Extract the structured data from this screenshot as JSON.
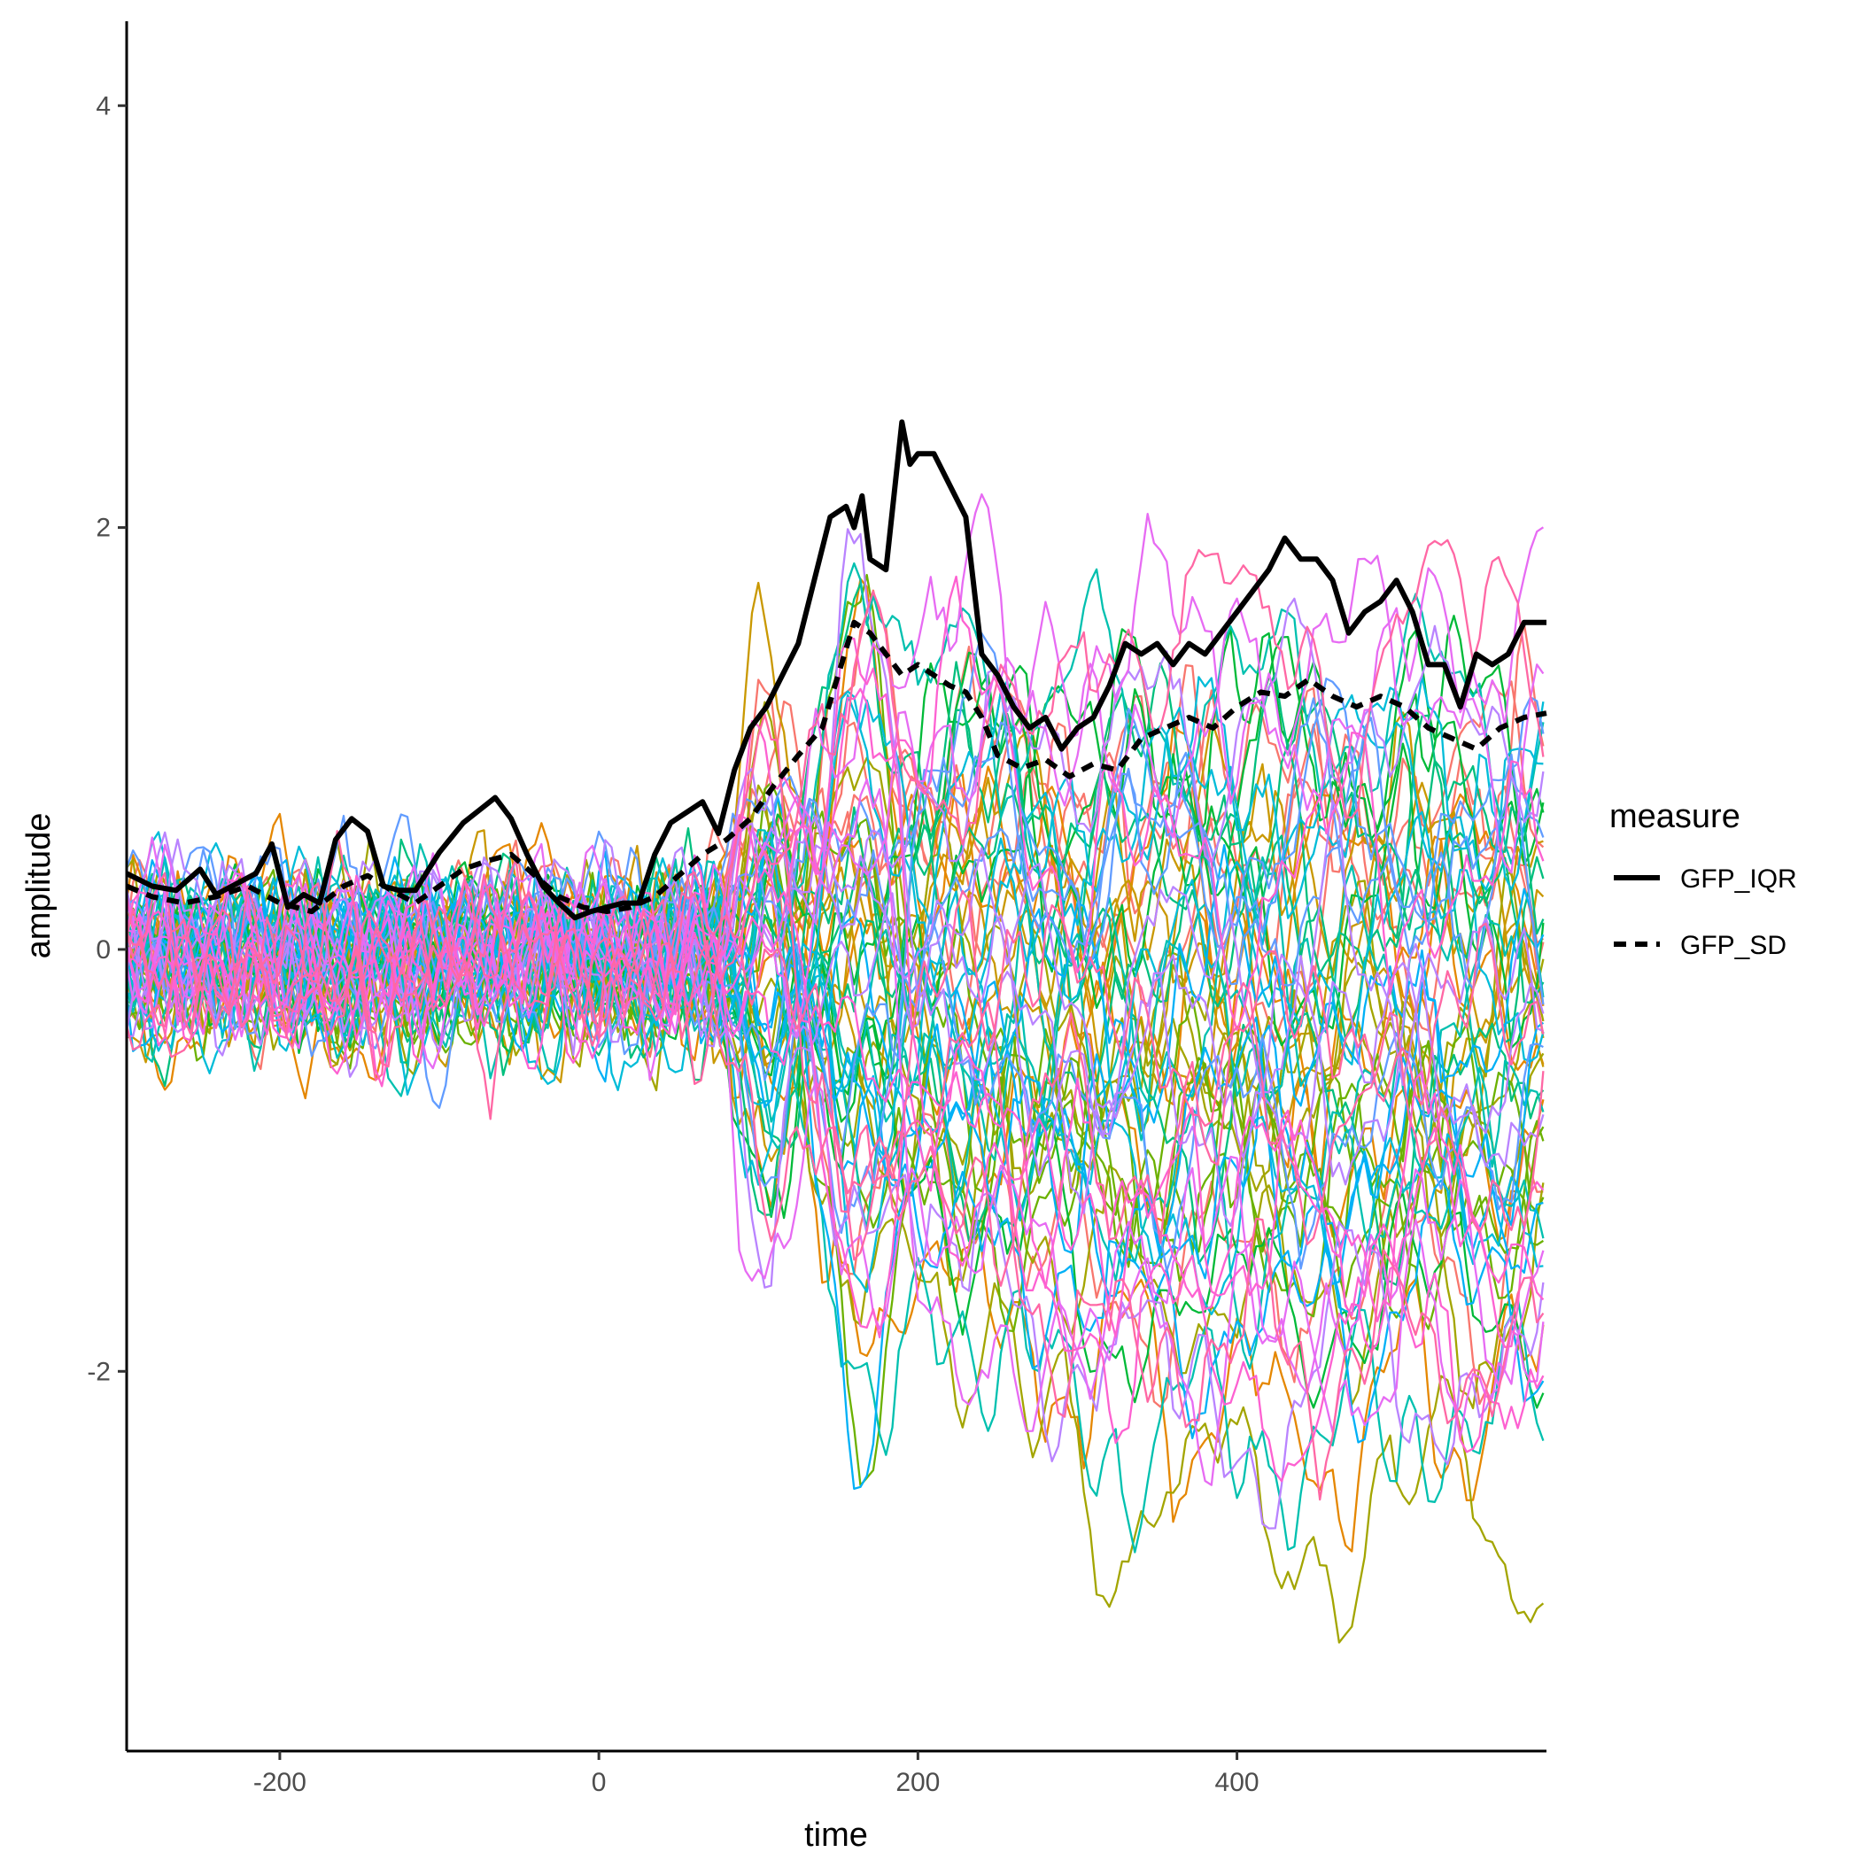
{
  "chart_data": {
    "type": "line",
    "xlabel": "time",
    "ylabel": "amplitude",
    "xlim": [
      -296,
      594
    ],
    "ylim": [
      -3.8,
      4.4
    ],
    "x_ticks": [
      -200,
      0,
      200,
      400
    ],
    "y_ticks": [
      -2,
      0,
      2,
      4
    ],
    "grid": false,
    "legend": {
      "title": "measure",
      "placement": "right",
      "entries": [
        {
          "label": "GFP_IQR",
          "style": "solid"
        },
        {
          "label": "GFP_SD",
          "style": "dashed"
        }
      ]
    },
    "channel_trace_count": 64,
    "channel_palette": [
      "#F8766D",
      "#E58700",
      "#C99800",
      "#A3A500",
      "#6BB100",
      "#00BA38",
      "#00BF7D",
      "#00C0AF",
      "#00BCD8",
      "#00B0F6",
      "#619CFF",
      "#B983FF",
      "#E76BF3",
      "#FD61D1",
      "#FF67A4"
    ],
    "series": [
      {
        "name": "GFP_IQR",
        "x": [
          -296,
          -280,
          -265,
          -250,
          -240,
          -230,
          -215,
          -205,
          -195,
          -185,
          -175,
          -165,
          -155,
          -145,
          -135,
          -125,
          -115,
          -100,
          -85,
          -75,
          -65,
          -55,
          -45,
          -35,
          -25,
          -15,
          -5,
          5,
          15,
          25,
          35,
          45,
          55,
          65,
          75,
          85,
          95,
          105,
          115,
          125,
          135,
          145,
          155,
          160,
          165,
          170,
          180,
          190,
          195,
          200,
          210,
          220,
          230,
          240,
          250,
          260,
          270,
          280,
          290,
          300,
          310,
          320,
          330,
          340,
          350,
          360,
          370,
          380,
          390,
          400,
          410,
          420,
          430,
          440,
          450,
          460,
          470,
          480,
          490,
          500,
          510,
          520,
          530,
          540,
          550,
          560,
          570,
          580,
          594
        ],
        "y": [
          0.36,
          0.3,
          0.28,
          0.38,
          0.26,
          0.3,
          0.36,
          0.5,
          0.2,
          0.26,
          0.22,
          0.52,
          0.62,
          0.56,
          0.3,
          0.28,
          0.28,
          0.46,
          0.6,
          0.66,
          0.72,
          0.62,
          0.45,
          0.3,
          0.22,
          0.15,
          0.18,
          0.2,
          0.22,
          0.22,
          0.45,
          0.6,
          0.65,
          0.7,
          0.55,
          0.85,
          1.05,
          1.15,
          1.3,
          1.45,
          1.75,
          2.05,
          2.1,
          2.0,
          2.15,
          1.85,
          1.8,
          2.5,
          2.3,
          2.35,
          2.35,
          2.2,
          2.05,
          1.4,
          1.3,
          1.15,
          1.05,
          1.1,
          0.95,
          1.05,
          1.1,
          1.25,
          1.45,
          1.4,
          1.45,
          1.35,
          1.45,
          1.4,
          1.5,
          1.6,
          1.7,
          1.8,
          1.95,
          1.85,
          1.85,
          1.75,
          1.5,
          1.6,
          1.65,
          1.75,
          1.6,
          1.35,
          1.35,
          1.15,
          1.4,
          1.35,
          1.4,
          1.55,
          1.55
        ]
      },
      {
        "name": "GFP_SD",
        "x": [
          -296,
          -280,
          -260,
          -240,
          -220,
          -200,
          -180,
          -160,
          -145,
          -130,
          -115,
          -100,
          -85,
          -70,
          -55,
          -40,
          -25,
          -10,
          5,
          20,
          35,
          50,
          65,
          80,
          95,
          110,
          125,
          140,
          150,
          160,
          170,
          180,
          190,
          200,
          210,
          220,
          230,
          240,
          250,
          265,
          280,
          295,
          310,
          325,
          340,
          355,
          370,
          385,
          400,
          415,
          430,
          445,
          460,
          475,
          490,
          505,
          520,
          535,
          550,
          565,
          580,
          594
        ],
        "y": [
          0.3,
          0.25,
          0.22,
          0.25,
          0.3,
          0.22,
          0.18,
          0.3,
          0.35,
          0.28,
          0.22,
          0.3,
          0.38,
          0.42,
          0.45,
          0.35,
          0.25,
          0.2,
          0.18,
          0.2,
          0.25,
          0.35,
          0.45,
          0.52,
          0.62,
          0.78,
          0.92,
          1.05,
          1.3,
          1.55,
          1.5,
          1.4,
          1.3,
          1.35,
          1.3,
          1.25,
          1.22,
          1.1,
          0.92,
          0.86,
          0.9,
          0.82,
          0.88,
          0.85,
          1.0,
          1.05,
          1.1,
          1.05,
          1.15,
          1.22,
          1.2,
          1.28,
          1.2,
          1.15,
          1.2,
          1.15,
          1.05,
          1.0,
          0.95,
          1.05,
          1.1,
          1.12
        ]
      }
    ]
  }
}
